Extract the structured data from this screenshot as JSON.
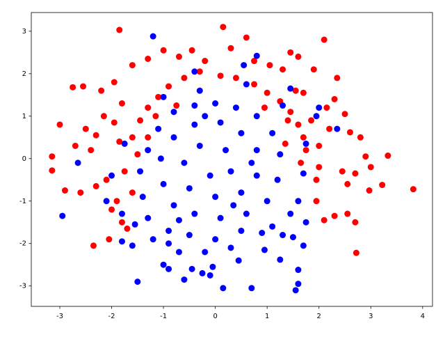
{
  "chart_data": {
    "type": "scatter",
    "xlim": [
      -3.55,
      4.19
    ],
    "ylim": [
      -3.48,
      3.44
    ],
    "xticks": [
      -3,
      -2,
      -1,
      0,
      1,
      2,
      3,
      4
    ],
    "yticks": [
      -3,
      -2,
      -1,
      0,
      1,
      2,
      3
    ],
    "series": [
      {
        "color": "#ff0000",
        "x": [
          -1.85,
          0.15,
          0.6,
          2.1,
          1.45,
          -3.15,
          -3.15,
          -3.0,
          -2.75,
          3.82,
          3.33,
          3.22,
          2.72,
          2.97,
          -2.35,
          -2.05,
          2.35,
          2.8,
          2.6,
          -2.55,
          -2.2,
          -1.95,
          -1.6,
          -1.3,
          -1.0,
          -0.7,
          -0.45,
          -0.2,
          0.3,
          0.75,
          1.05,
          1.3,
          1.6,
          1.9,
          2.3,
          2.5,
          2.2,
          2.45,
          2.7,
          2.55,
          2.1,
          2.3,
          2.55,
          2.7,
          1.95,
          2.0,
          1.85,
          1.7,
          2.0,
          -2.9,
          -2.6,
          -2.4,
          -2.5,
          -2.3,
          -2.15,
          -2.1,
          -2.3,
          -2.0,
          -1.8,
          -1.7,
          -1.9,
          -1.6,
          -1.85,
          -1.6,
          -1.45,
          -1.3,
          -1.1,
          -0.9,
          -0.6,
          -0.3,
          0.1,
          0.4,
          0.75,
          1.0,
          1.25,
          1.45,
          1.6,
          1.7,
          1.75,
          1.65,
          1.55,
          -1.5,
          -1.75,
          -1.95,
          -1.3,
          -1.15,
          1.35,
          1.4,
          0.95,
          -0.75,
          2.9,
          3.0,
          -2.7,
          -1.8,
          2.15,
          1.95
        ],
        "y": [
          3.03,
          3.1,
          2.85,
          2.8,
          2.5,
          0.05,
          -0.28,
          0.8,
          1.68,
          -0.72,
          0.07,
          -0.62,
          -2.22,
          -0.75,
          -2.05,
          -1.9,
          1.9,
          0.5,
          0.62,
          1.7,
          1.6,
          1.8,
          2.2,
          2.35,
          2.55,
          2.4,
          2.55,
          2.3,
          2.6,
          2.3,
          2.2,
          2.1,
          2.4,
          2.1,
          1.4,
          1.05,
          0.7,
          -0.3,
          -0.35,
          -0.6,
          -1.45,
          -1.35,
          -1.3,
          -1.5,
          -1.0,
          0.3,
          0.9,
          1.55,
          -0.2,
          -0.75,
          -0.8,
          0.2,
          0.7,
          0.55,
          1.0,
          -0.5,
          -0.65,
          -1.2,
          -1.5,
          -1.65,
          -1.0,
          -0.8,
          0.4,
          0.5,
          0.9,
          1.2,
          1.45,
          1.7,
          1.9,
          2.05,
          1.95,
          1.9,
          1.75,
          1.55,
          1.35,
          1.1,
          0.8,
          0.5,
          0.2,
          -0.1,
          1.6,
          0.1,
          -0.3,
          0.85,
          0.5,
          1.0,
          0.35,
          0.9,
          1.2,
          1.25,
          0.05,
          -0.2,
          0.3,
          1.3,
          1.2,
          -0.5
        ]
      },
      {
        "color": "#0000ff",
        "x": [
          -1.2,
          -2.95,
          -1.5,
          0.7,
          0.15,
          1.55,
          1.6,
          1.6,
          0.8,
          2.0,
          2.35,
          -2.65,
          -0.6,
          -0.05,
          -0.1,
          -1.0,
          -0.9,
          -0.25,
          0.45,
          1.25,
          1.7,
          1.5,
          0.95,
          -0.45,
          -1.2,
          -1.6,
          -1.8,
          -2.1,
          -1.8,
          -2.0,
          -1.75,
          -0.3,
          0.55,
          -0.4,
          -1.0,
          0.6,
          1.3,
          1.45,
          1.95,
          1.75,
          1.7,
          1.6,
          1.45,
          1.1,
          0.5,
          0.0,
          -0.5,
          -0.9,
          -1.3,
          -1.4,
          -1.45,
          -1.3,
          -1.1,
          -0.8,
          -0.4,
          0.0,
          0.4,
          0.8,
          1.1,
          1.25,
          1.2,
          1.0,
          0.6,
          0.1,
          -0.4,
          -0.8,
          -1.0,
          -1.05,
          -0.8,
          -0.4,
          0.1,
          0.5,
          0.8,
          0.8,
          0.5,
          0.0,
          -0.5,
          -0.6,
          -0.3,
          0.2,
          0.3,
          -0.1,
          -0.9,
          0.3,
          0.9,
          1.3,
          -0.2,
          -0.7,
          1.75,
          -1.55,
          0.7,
          -0.2,
          0.35,
          -0.7
        ],
        "y": [
          2.88,
          -1.35,
          -2.9,
          -3.05,
          -3.05,
          -3.1,
          -2.95,
          -2.62,
          2.42,
          1.2,
          0.7,
          -0.1,
          -2.85,
          -2.55,
          -2.75,
          -2.5,
          -2.6,
          -2.7,
          -2.4,
          -2.38,
          -2.05,
          -1.85,
          -2.15,
          -2.6,
          -1.9,
          -2.05,
          -1.95,
          -1.0,
          -1.3,
          -0.4,
          0.35,
          1.6,
          2.2,
          2.05,
          1.45,
          1.75,
          1.25,
          1.65,
          1.0,
          0.35,
          -0.35,
          -1.0,
          -1.3,
          -1.6,
          -1.7,
          -1.9,
          -1.8,
          -1.7,
          -1.4,
          -0.9,
          -0.3,
          0.2,
          0.7,
          1.1,
          1.25,
          1.3,
          1.2,
          1.0,
          0.6,
          0.1,
          -0.5,
          -1.0,
          -1.3,
          -1.4,
          -1.3,
          -1.1,
          -0.6,
          0.0,
          0.5,
          0.8,
          0.85,
          0.6,
          0.2,
          -0.4,
          -0.8,
          -0.9,
          -0.7,
          -0.1,
          0.3,
          0.2,
          -0.3,
          -0.4,
          -2.0,
          -2.1,
          -1.75,
          -1.8,
          -2.2,
          -2.2,
          -1.5,
          -1.55,
          -0.1,
          1.0,
          -1.1,
          -1.45
        ]
      }
    ]
  }
}
